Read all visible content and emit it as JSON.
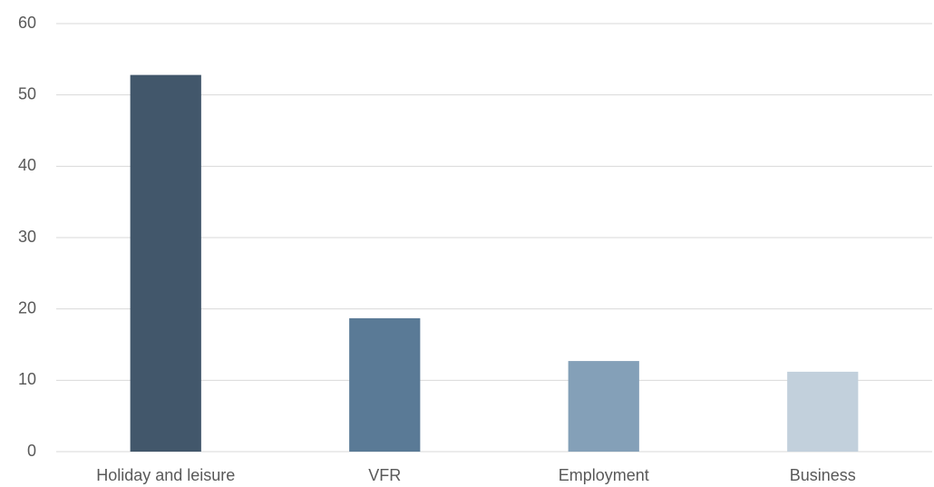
{
  "chart_data": {
    "type": "bar",
    "categories": [
      "Holiday and leisure",
      "VFR",
      "Employment",
      "Business"
    ],
    "values": [
      52.8,
      18.7,
      12.7,
      11.2
    ],
    "colors": [
      "#42576b",
      "#5a7a96",
      "#84a0b8",
      "#c2d0dc"
    ],
    "ylim": [
      0,
      60
    ],
    "yticks": [
      0,
      10,
      20,
      30,
      40,
      50,
      60
    ],
    "grid": true
  }
}
